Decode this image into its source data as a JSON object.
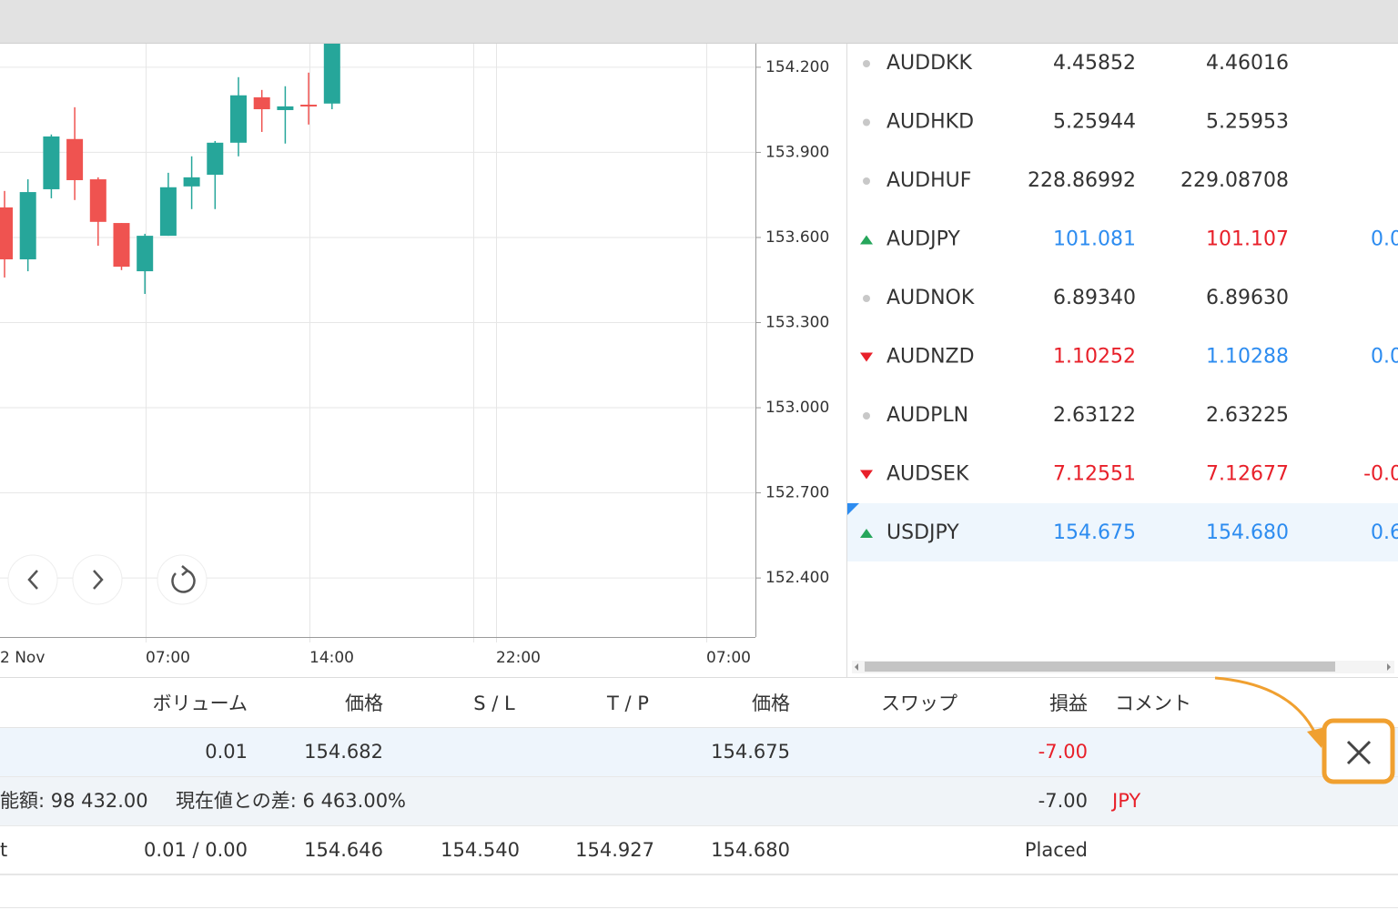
{
  "chart": {
    "type": "candlestick",
    "up_color": "#26a69a",
    "down_color": "#ef5350",
    "ylim": [
      152.192,
      154.283
    ],
    "yticks": [
      {
        "value": 154.2,
        "label": "154.200"
      },
      {
        "value": 153.9,
        "label": "153.900"
      },
      {
        "value": 153.6,
        "label": "153.600"
      },
      {
        "value": 153.3,
        "label": "153.300"
      },
      {
        "value": 153.0,
        "label": "153.000"
      },
      {
        "value": 152.7,
        "label": "152.700"
      },
      {
        "value": 152.4,
        "label": "152.400"
      }
    ],
    "xticks": [
      "2 Nov",
      "07:00",
      "14:00",
      "22:00",
      "07:00"
    ],
    "candles": [
      {
        "open": 153.706,
        "high": 153.764,
        "low": 153.459,
        "close": 153.523
      },
      {
        "open": 153.523,
        "high": 153.805,
        "low": 153.481,
        "close": 153.76
      },
      {
        "open": 153.77,
        "high": 153.963,
        "low": 153.738,
        "close": 153.956
      },
      {
        "open": 153.947,
        "high": 154.059,
        "low": 153.732,
        "close": 153.802
      },
      {
        "open": 153.805,
        "high": 153.812,
        "low": 153.571,
        "close": 153.655
      },
      {
        "open": 153.651,
        "high": 153.651,
        "low": 153.485,
        "close": 153.497
      },
      {
        "open": 153.481,
        "high": 153.613,
        "low": 153.401,
        "close": 153.606
      },
      {
        "open": 153.606,
        "high": 153.828,
        "low": 153.606,
        "close": 153.777
      },
      {
        "open": 153.78,
        "high": 153.886,
        "low": 153.7,
        "close": 153.812
      },
      {
        "open": 153.821,
        "high": 153.94,
        "low": 153.7,
        "close": 153.934
      },
      {
        "open": 153.934,
        "high": 154.165,
        "low": 153.886,
        "close": 154.101
      },
      {
        "open": 154.094,
        "high": 154.12,
        "low": 153.972,
        "close": 154.052
      },
      {
        "open": 154.049,
        "high": 154.133,
        "low": 153.931,
        "close": 154.062
      },
      {
        "open": 154.068,
        "high": 154.181,
        "low": 153.998,
        "close": 154.066
      },
      {
        "open": 154.072,
        "high": 154.283,
        "low": 154.052,
        "close": 154.283
      }
    ]
  },
  "watchlist": {
    "rows": [
      {
        "symbol": "AUDDKK",
        "bid": "4.45852",
        "ask": "4.46016",
        "trend": "flat",
        "bid_color": "#333333",
        "ask_color": "#333333"
      },
      {
        "symbol": "AUDHKD",
        "bid": "5.25944",
        "ask": "5.25953",
        "trend": "flat",
        "bid_color": "#333333",
        "ask_color": "#333333"
      },
      {
        "symbol": "AUDHUF",
        "bid": "228.86992",
        "ask": "229.08708",
        "trend": "flat",
        "bid_color": "#333333",
        "ask_color": "#333333"
      },
      {
        "symbol": "AUDJPY",
        "bid": "101.081",
        "ask": "101.107",
        "change": "0.0",
        "trend": "up",
        "bid_color": "#2d8cf0",
        "ask_color": "#e8202a",
        "change_color": "#2d8cf0"
      },
      {
        "symbol": "AUDNOK",
        "bid": "6.89340",
        "ask": "6.89630",
        "trend": "flat",
        "bid_color": "#333333",
        "ask_color": "#333333"
      },
      {
        "symbol": "AUDNZD",
        "bid": "1.10252",
        "ask": "1.10288",
        "change": "0.0",
        "trend": "down",
        "bid_color": "#e8202a",
        "ask_color": "#2d8cf0",
        "change_color": "#2d8cf0"
      },
      {
        "symbol": "AUDPLN",
        "bid": "2.63122",
        "ask": "2.63225",
        "trend": "flat",
        "bid_color": "#333333",
        "ask_color": "#333333"
      },
      {
        "symbol": "AUDSEK",
        "bid": "7.12551",
        "ask": "7.12677",
        "change": "-0.0",
        "trend": "down",
        "bid_color": "#e8202a",
        "ask_color": "#e8202a",
        "change_color": "#e8202a"
      },
      {
        "symbol": "USDJPY",
        "bid": "154.675",
        "ask": "154.680",
        "change": "0.6",
        "trend": "up",
        "bid_color": "#2d8cf0",
        "ask_color": "#2d8cf0",
        "change_color": "#2d8cf0",
        "selected": true
      }
    ]
  },
  "positions": {
    "columns": {
      "volume": "ボリューム",
      "open_price": "価格",
      "sl": "S / L",
      "tp": "T / P",
      "price": "価格",
      "swap": "スワップ",
      "profit": "損益",
      "comment": "コメント"
    },
    "rows": [
      {
        "volume": "0.01",
        "open_price": "154.682",
        "price": "154.675",
        "profit": "-7.00",
        "colors": {
          "profit": "#e8202a"
        },
        "background": "#eef5fc"
      },
      {
        "free_margin": "能額: 98 432.00",
        "deviation": "現在値との差: 6 463.00%",
        "profit": "-7.00",
        "comment": "JPY",
        "colors": {
          "comment": "#e8202a"
        },
        "background": "#f0f4f8"
      },
      {
        "symbol": "t",
        "volume": "0.01 / 0.00",
        "open_price": "154.646",
        "sl": "154.540",
        "tp": "154.927",
        "price": "154.680",
        "profit": "Placed",
        "background": "#ffffff"
      }
    ]
  }
}
